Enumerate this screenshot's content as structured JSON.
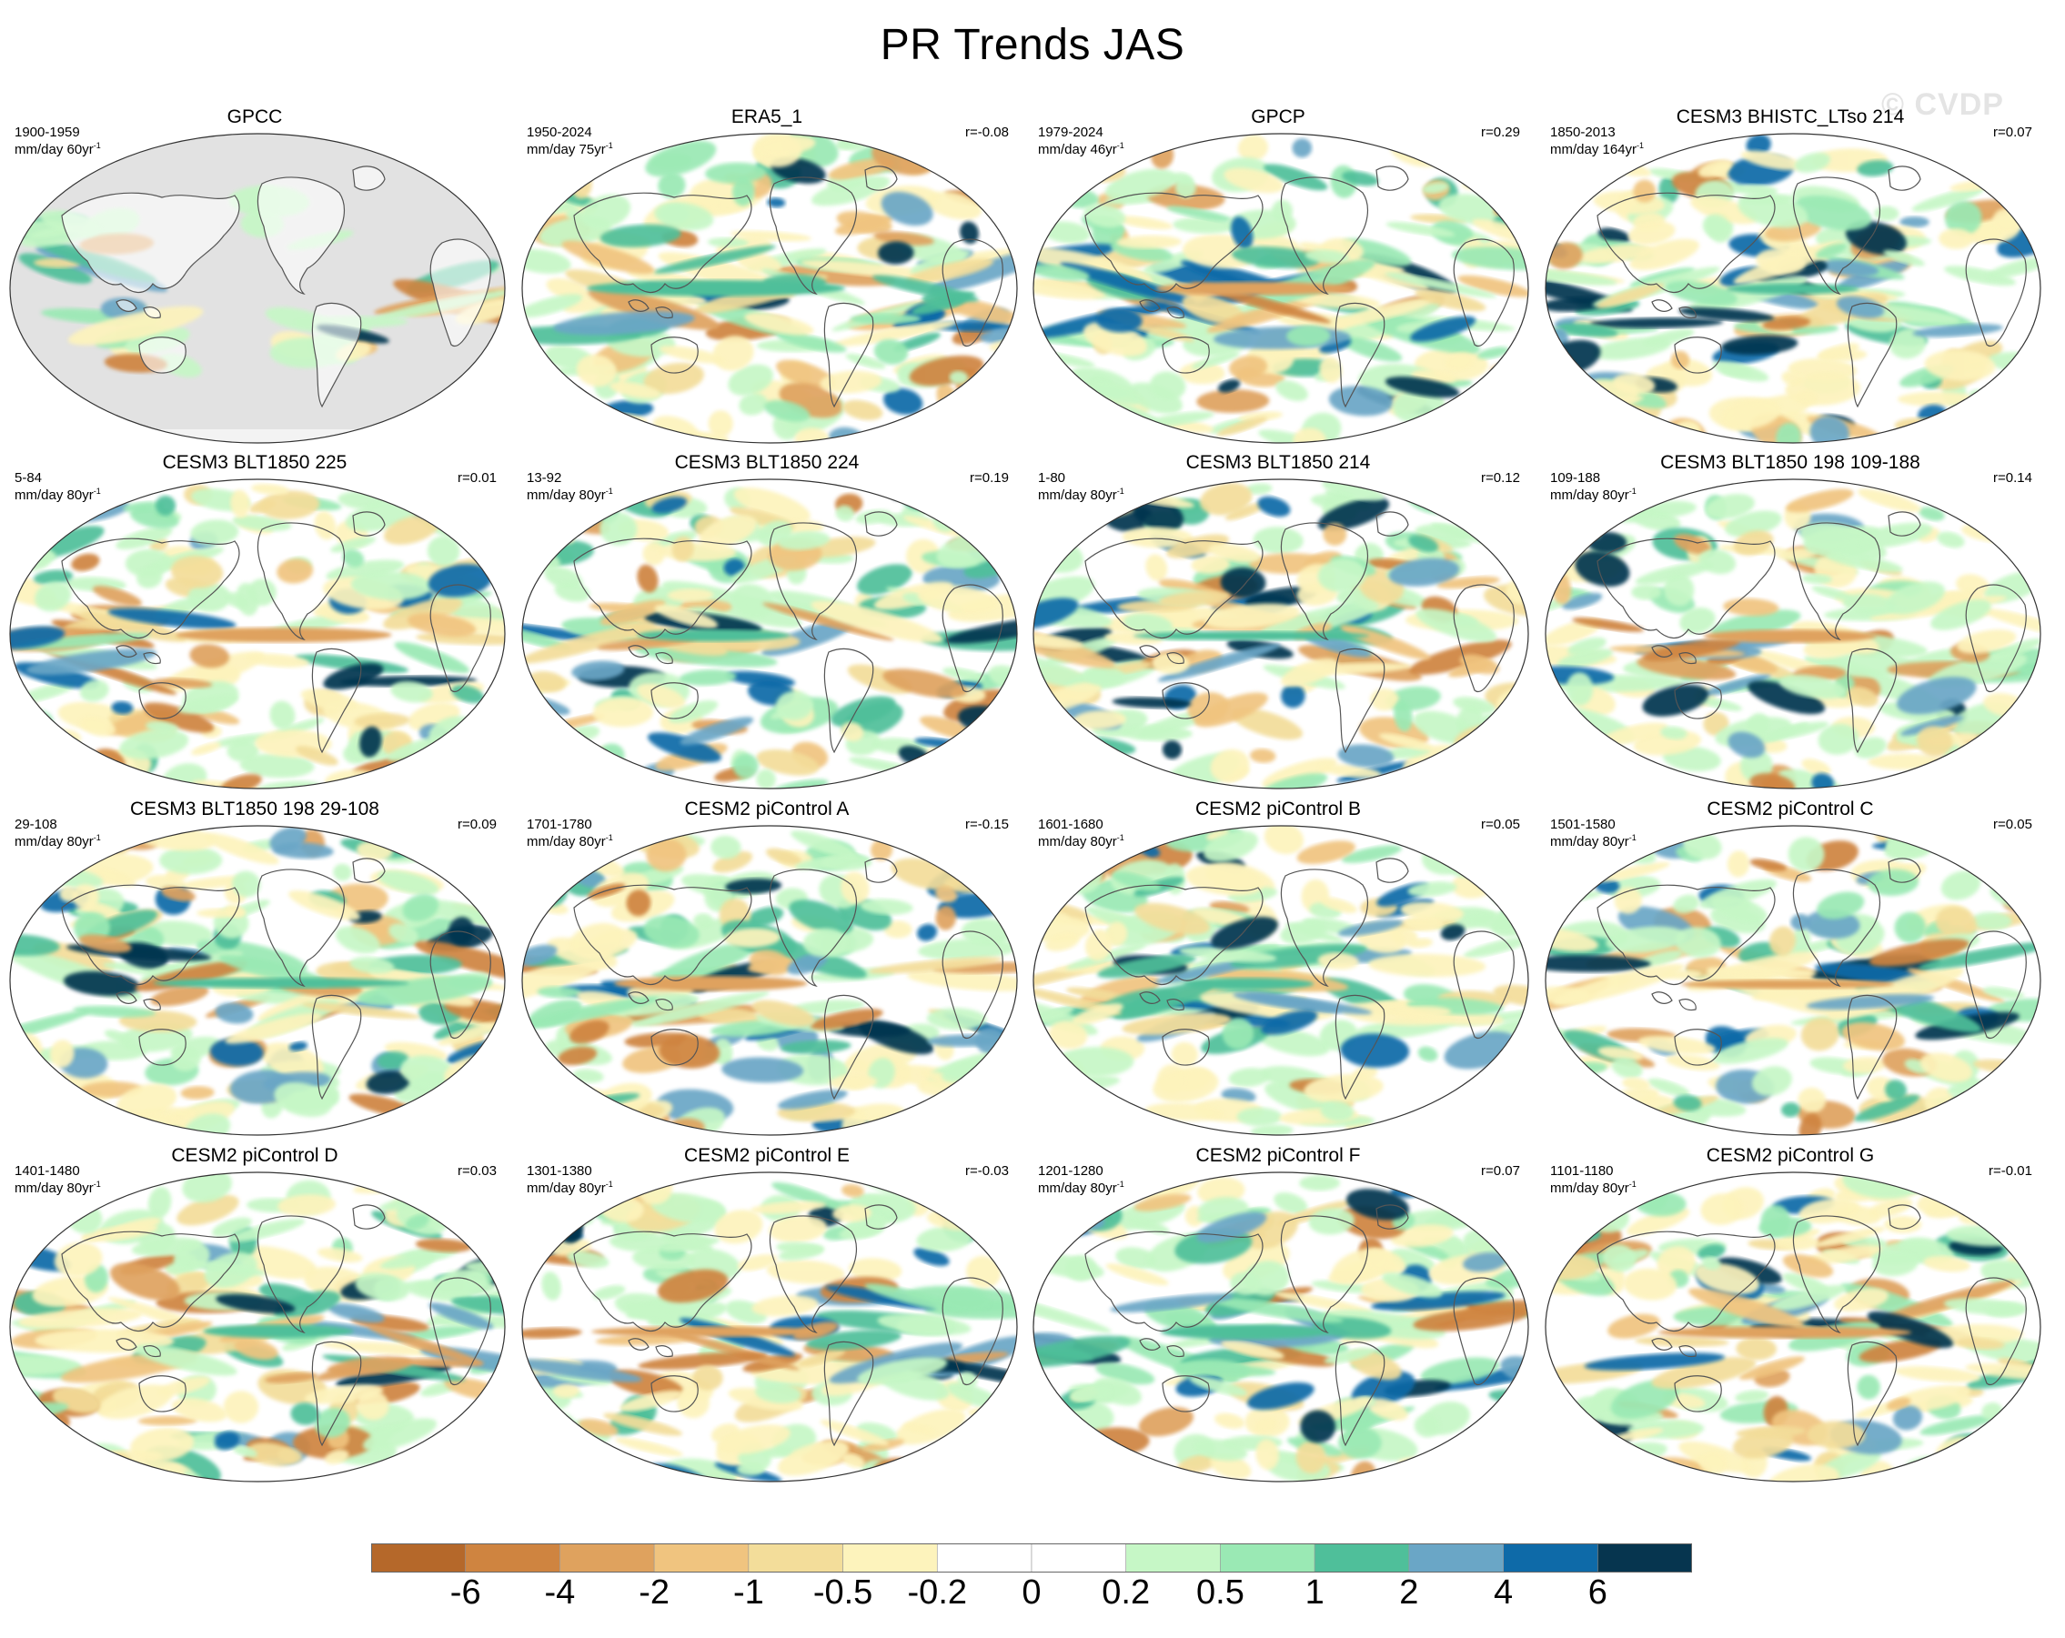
{
  "title": "PR Trends JAS",
  "watermark": "© CVDP",
  "panels": [
    {
      "title": "GPCC",
      "period": "1900-1959",
      "units": "mm/day 60yr",
      "corr": "",
      "masked": true
    },
    {
      "title": "ERA5_1",
      "period": "1950-2024",
      "units": "mm/day 75yr",
      "corr": "r=-0.08",
      "masked": false
    },
    {
      "title": "GPCP",
      "period": "1979-2024",
      "units": "mm/day 46yr",
      "corr": "r=0.29",
      "masked": false
    },
    {
      "title": "CESM3 BHISTC_LTso 214",
      "period": "1850-2013",
      "units": "mm/day 164yr",
      "corr": "r=0.07",
      "masked": false
    },
    {
      "title": "CESM3 BLT1850 225",
      "period": "5-84",
      "units": "mm/day 80yr",
      "corr": "r=0.01",
      "masked": false
    },
    {
      "title": "CESM3 BLT1850 224",
      "period": "13-92",
      "units": "mm/day 80yr",
      "corr": "r=0.19",
      "masked": false
    },
    {
      "title": "CESM3 BLT1850 214",
      "period": "1-80",
      "units": "mm/day 80yr",
      "corr": "r=0.12",
      "masked": false
    },
    {
      "title": "CESM3 BLT1850 198 109-188",
      "period": "109-188",
      "units": "mm/day 80yr",
      "corr": "r=0.14",
      "masked": false
    },
    {
      "title": "CESM3 BLT1850 198 29-108",
      "period": "29-108",
      "units": "mm/day 80yr",
      "corr": "r=0.09",
      "masked": false
    },
    {
      "title": "CESM2 piControl A",
      "period": "1701-1780",
      "units": "mm/day 80yr",
      "corr": "r=-0.15",
      "masked": false
    },
    {
      "title": "CESM2 piControl B",
      "period": "1601-1680",
      "units": "mm/day 80yr",
      "corr": "r=0.05",
      "masked": false
    },
    {
      "title": "CESM2 piControl C",
      "period": "1501-1580",
      "units": "mm/day 80yr",
      "corr": "r=0.05",
      "masked": false
    },
    {
      "title": "CESM2 piControl D",
      "period": "1401-1480",
      "units": "mm/day 80yr",
      "corr": "r=0.03",
      "masked": false
    },
    {
      "title": "CESM2 piControl E",
      "period": "1301-1380",
      "units": "mm/day 80yr",
      "corr": "r=-0.03",
      "masked": false
    },
    {
      "title": "CESM2 piControl F",
      "period": "1201-1280",
      "units": "mm/day 80yr",
      "corr": "r=0.07",
      "masked": false
    },
    {
      "title": "CESM2 piControl G",
      "period": "1101-1180",
      "units": "mm/day 80yr",
      "corr": "r=-0.01",
      "masked": false
    }
  ],
  "colorbar": {
    "labels": [
      "-6",
      "-4",
      "-2",
      "-1",
      "-0.5",
      "-0.2",
      "0",
      "0.2",
      "0.5",
      "1",
      "2",
      "4",
      "6"
    ],
    "colors": [
      "#b5682a",
      "#cf8440",
      "#dfa25e",
      "#f0c47f",
      "#f3dd9a",
      "#fdf3bc",
      "#ffffff",
      "#ffffff",
      "#c6f7c6",
      "#9ae9b4",
      "#4fbf9a",
      "#6aa6c6",
      "#0e6aa8",
      "#06354f"
    ]
  }
}
